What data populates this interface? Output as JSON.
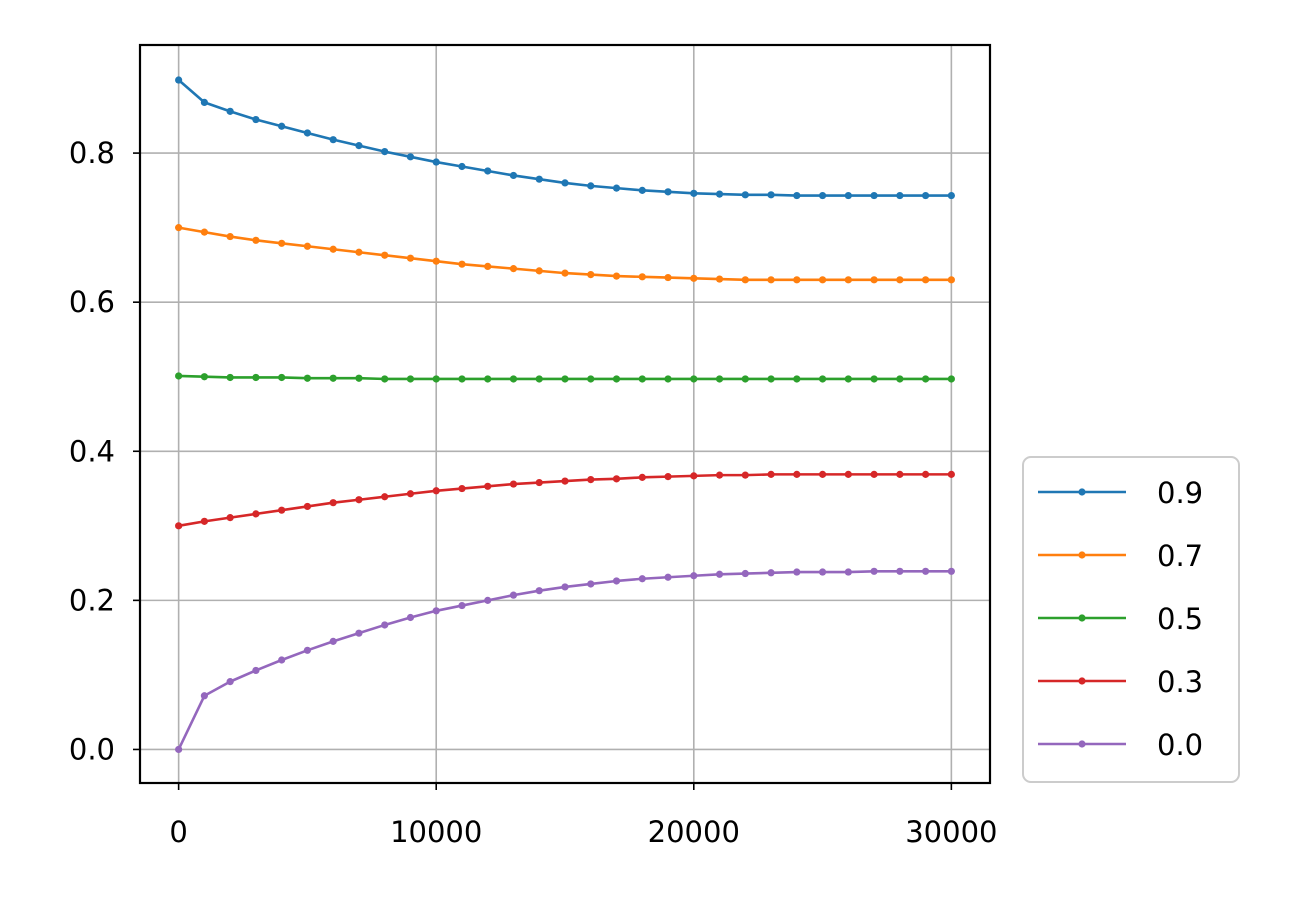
{
  "chart_data": {
    "type": "line",
    "title": "",
    "xlabel": "",
    "ylabel": "",
    "xlim": [
      -1500,
      31500
    ],
    "ylim": [
      -0.045,
      0.945
    ],
    "grid": true,
    "legend_position": "outside-lower-right",
    "xticks": [
      0,
      10000,
      20000,
      30000
    ],
    "xtick_labels": [
      "0",
      "10000",
      "20000",
      "30000"
    ],
    "yticks": [
      0.0,
      0.2,
      0.4,
      0.6,
      0.8
    ],
    "ytick_labels": [
      "0.0",
      "0.2",
      "0.4",
      "0.6",
      "0.8"
    ],
    "x": [
      0,
      1000,
      2000,
      3000,
      4000,
      5000,
      6000,
      7000,
      8000,
      9000,
      10000,
      11000,
      12000,
      13000,
      14000,
      15000,
      16000,
      17000,
      18000,
      19000,
      20000,
      21000,
      22000,
      23000,
      24000,
      25000,
      26000,
      27000,
      28000,
      29000,
      30000
    ],
    "series": [
      {
        "name": "0.9",
        "color": "#1f77b4",
        "values": [
          0.898,
          0.868,
          0.856,
          0.845,
          0.836,
          0.827,
          0.818,
          0.81,
          0.802,
          0.795,
          0.788,
          0.782,
          0.776,
          0.77,
          0.765,
          0.76,
          0.756,
          0.753,
          0.75,
          0.748,
          0.746,
          0.745,
          0.744,
          0.744,
          0.743,
          0.743,
          0.743,
          0.743,
          0.743,
          0.743,
          0.743
        ]
      },
      {
        "name": "0.7",
        "color": "#ff7f0e",
        "values": [
          0.7,
          0.694,
          0.688,
          0.683,
          0.679,
          0.675,
          0.671,
          0.667,
          0.663,
          0.659,
          0.655,
          0.651,
          0.648,
          0.645,
          0.642,
          0.639,
          0.637,
          0.635,
          0.634,
          0.633,
          0.632,
          0.631,
          0.63,
          0.63,
          0.63,
          0.63,
          0.63,
          0.63,
          0.63,
          0.63,
          0.63
        ]
      },
      {
        "name": "0.5",
        "color": "#2ca02c",
        "values": [
          0.501,
          0.5,
          0.499,
          0.499,
          0.499,
          0.498,
          0.498,
          0.498,
          0.497,
          0.497,
          0.497,
          0.497,
          0.497,
          0.497,
          0.497,
          0.497,
          0.497,
          0.497,
          0.497,
          0.497,
          0.497,
          0.497,
          0.497,
          0.497,
          0.497,
          0.497,
          0.497,
          0.497,
          0.497,
          0.497,
          0.497
        ]
      },
      {
        "name": "0.3",
        "color": "#d62728",
        "values": [
          0.3,
          0.306,
          0.311,
          0.316,
          0.321,
          0.326,
          0.331,
          0.335,
          0.339,
          0.343,
          0.347,
          0.35,
          0.353,
          0.356,
          0.358,
          0.36,
          0.362,
          0.363,
          0.365,
          0.366,
          0.367,
          0.368,
          0.368,
          0.369,
          0.369,
          0.369,
          0.369,
          0.369,
          0.369,
          0.369,
          0.369
        ]
      },
      {
        "name": "0.0",
        "color": "#9467bd",
        "values": [
          0.0,
          0.072,
          0.091,
          0.106,
          0.12,
          0.133,
          0.145,
          0.156,
          0.167,
          0.177,
          0.186,
          0.193,
          0.2,
          0.207,
          0.213,
          0.218,
          0.222,
          0.226,
          0.229,
          0.231,
          0.233,
          0.235,
          0.236,
          0.237,
          0.238,
          0.238,
          0.238,
          0.239,
          0.239,
          0.239,
          0.239
        ]
      }
    ]
  }
}
